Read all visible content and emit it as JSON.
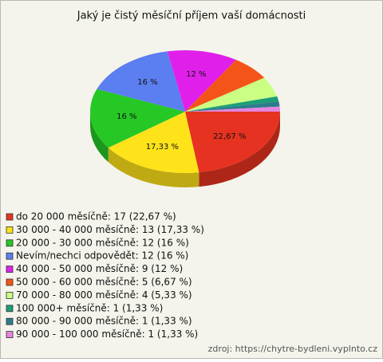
{
  "chart_data": {
    "type": "pie3d",
    "title": "Jaký je čistý měsíční příjem vaší domácnosti",
    "categories": [
      "do 20 000 měsíčně: 17 (22,67 %)",
      "30 000 - 40 000 měsíčně: 13 (17,33 %)",
      "20 000 - 30 000 měsíčně: 12 (16 %)",
      "Nevím/nechci odpovědět: 12 (16 %)",
      "40 000 - 50 000 měsíčně: 9 (12 %)",
      "50 000 - 60 000 měsíčně: 5 (6,67 %)",
      "70 000 - 80 000 měsíčně: 4 (5,33 %)",
      "100 000+ měsíčně: 1 (1,33 %)",
      "80 000 - 90 000 měsíčně: 1 (1,33 %)",
      "90 000 - 100 000 měsíčně: 1 (1,33 %)"
    ],
    "values": [
      22.67,
      17.33,
      16,
      16,
      12,
      6.67,
      5.33,
      1.33,
      1.33,
      1.33
    ],
    "value_labels": [
      "22,67 %",
      "17,33 %",
      "16 %",
      "16 %",
      "12 %",
      null,
      null,
      null,
      null,
      null
    ],
    "colors": [
      "#e63220",
      "#ffe31a",
      "#26c826",
      "#5b7ef0",
      "#e020ea",
      "#f45418",
      "#caff84",
      "#1c9e76",
      "#2c7c8c",
      "#e484e0"
    ],
    "source": "zdroj: https://chytre-bydleni.vyplnto.cz"
  }
}
